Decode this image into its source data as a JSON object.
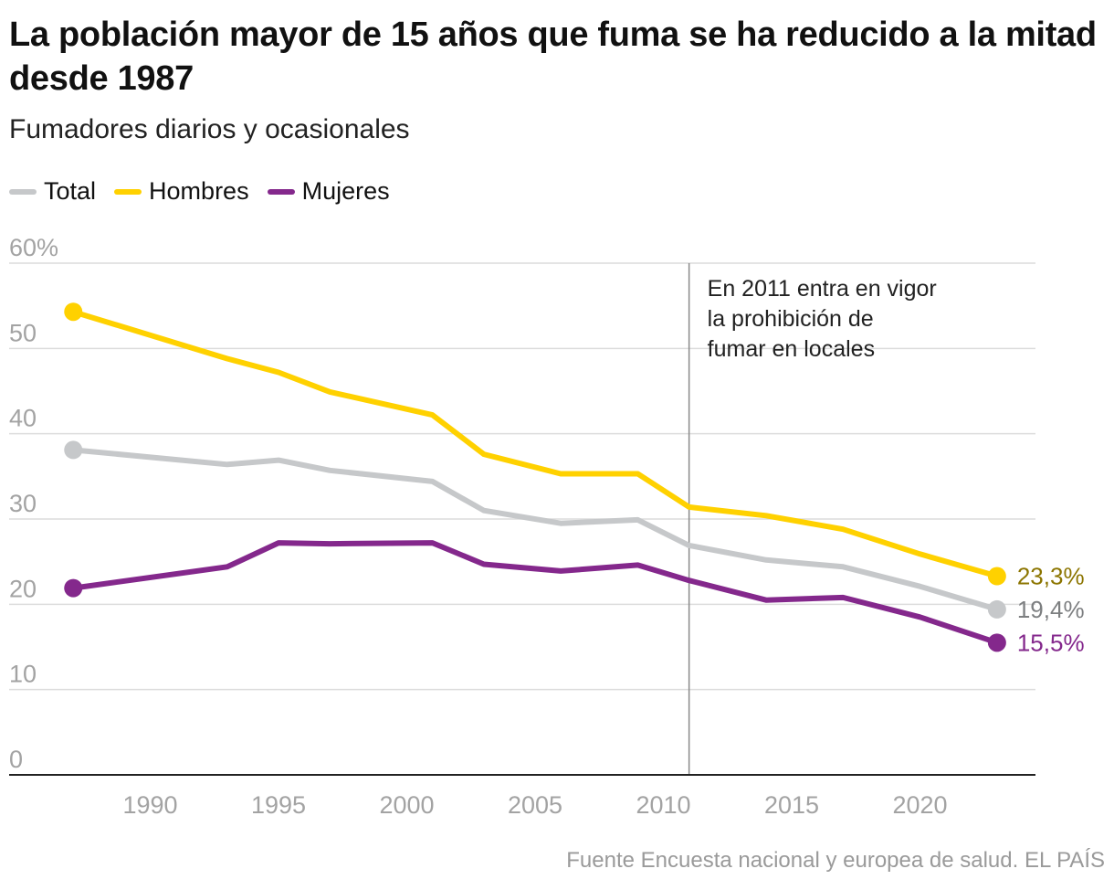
{
  "chart_data": {
    "type": "line",
    "title": "La población mayor de 15 años que fuma se ha reducido a la mitad desde 1987",
    "subtitle": "Fumadores diarios y ocasionales",
    "xlabel": "",
    "ylabel": "",
    "xlim": [
      1984.5,
      2024.5
    ],
    "ylim": [
      0,
      60
    ],
    "x_ticks": [
      1990,
      1995,
      2000,
      2005,
      2010,
      2015,
      2020
    ],
    "y_ticks": [
      {
        "value": 0,
        "label": "0"
      },
      {
        "value": 10,
        "label": "10"
      },
      {
        "value": 20,
        "label": "20"
      },
      {
        "value": 30,
        "label": "30"
      },
      {
        "value": 40,
        "label": "40"
      },
      {
        "value": 50,
        "label": "50"
      },
      {
        "value": 60,
        "label": "60%"
      }
    ],
    "grid": true,
    "legend_position": "top-left",
    "series": [
      {
        "name": "Total",
        "color": "#c6c8ca",
        "label_color": "#7d7f81",
        "end_label": "19,4%",
        "points": [
          [
            1987,
            38.1
          ],
          [
            1993,
            36.4
          ],
          [
            1995,
            36.9
          ],
          [
            1997,
            35.7
          ],
          [
            2001,
            34.4
          ],
          [
            2003,
            31.0
          ],
          [
            2006,
            29.5
          ],
          [
            2009,
            29.9
          ],
          [
            2011,
            26.9
          ],
          [
            2014,
            25.2
          ],
          [
            2017,
            24.4
          ],
          [
            2020,
            22.1
          ],
          [
            2023,
            19.4
          ]
        ]
      },
      {
        "name": "Hombres",
        "color": "#ffd100",
        "label_color": "#8c7500",
        "end_label": "23,3%",
        "points": [
          [
            1987,
            54.3
          ],
          [
            1993,
            48.8
          ],
          [
            1995,
            47.2
          ],
          [
            1997,
            44.9
          ],
          [
            2001,
            42.2
          ],
          [
            2003,
            37.6
          ],
          [
            2006,
            35.3
          ],
          [
            2009,
            35.3
          ],
          [
            2011,
            31.4
          ],
          [
            2014,
            30.4
          ],
          [
            2017,
            28.8
          ],
          [
            2020,
            25.9
          ],
          [
            2023,
            23.3
          ]
        ]
      },
      {
        "name": "Mujeres",
        "color": "#84288c",
        "label_color": "#84288c",
        "end_label": "15,5%",
        "points": [
          [
            1987,
            21.9
          ],
          [
            1993,
            24.4
          ],
          [
            1995,
            27.2
          ],
          [
            1997,
            27.1
          ],
          [
            2001,
            27.2
          ],
          [
            2003,
            24.7
          ],
          [
            2006,
            23.9
          ],
          [
            2009,
            24.6
          ],
          [
            2011,
            22.8
          ],
          [
            2014,
            20.5
          ],
          [
            2017,
            20.8
          ],
          [
            2020,
            18.5
          ],
          [
            2023,
            15.5
          ]
        ]
      }
    ],
    "annotations": [
      {
        "x": 2011,
        "lines": [
          "En 2011 entra en vigor",
          "la prohibición de",
          "fumar en locales"
        ]
      }
    ]
  },
  "source": "Fuente Encuesta nacional y europea de salud. EL PAÍS"
}
